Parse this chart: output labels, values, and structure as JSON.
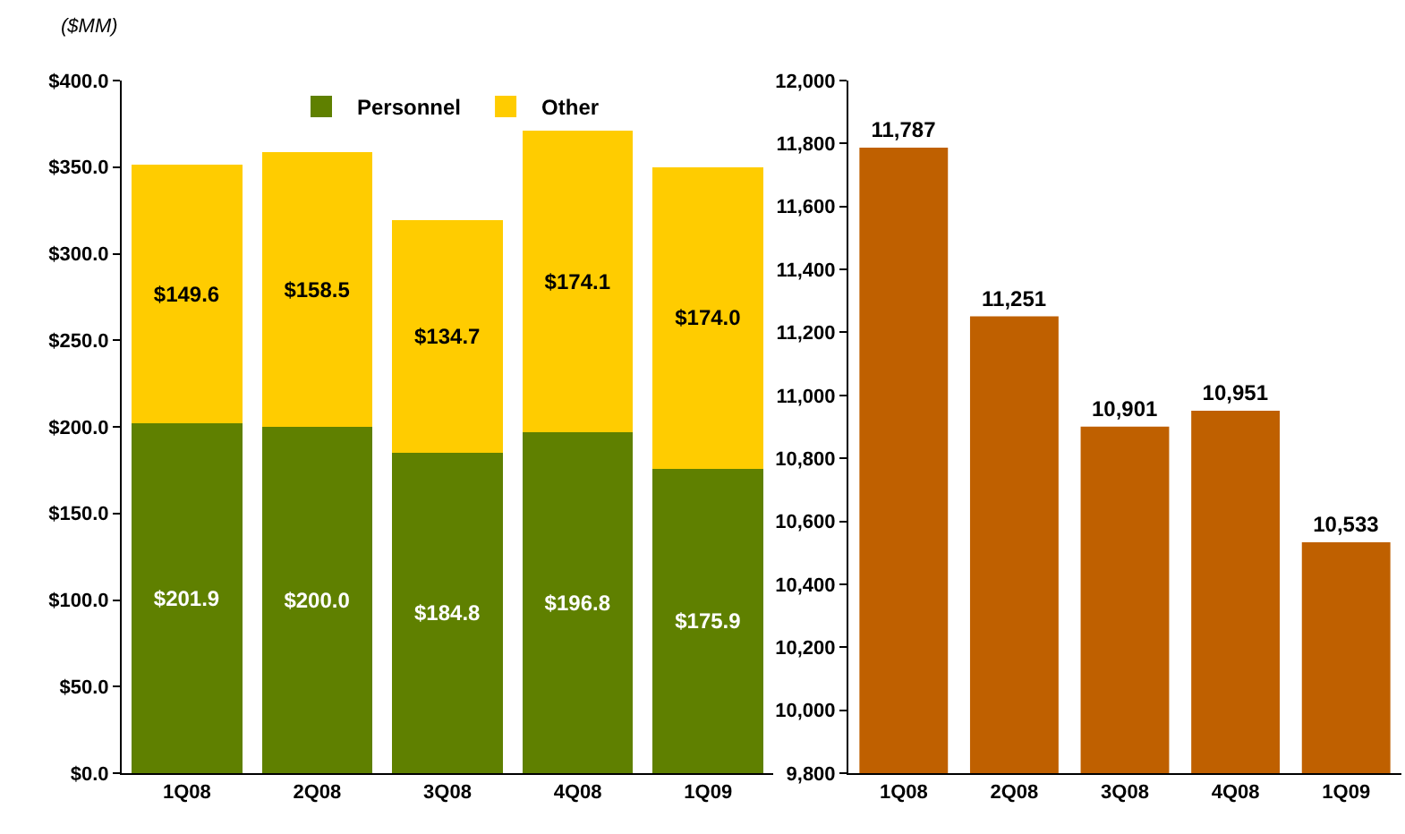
{
  "chart_data": [
    {
      "type": "bar",
      "ylabel": "($MM)",
      "categories": [
        "1Q08",
        "2Q08",
        "3Q08",
        "4Q08",
        "1Q09"
      ],
      "stacked": true,
      "legend": "top",
      "series": [
        {
          "name": "Personnel",
          "color": "#5f8000",
          "values": [
            201.9,
            200.0,
            184.8,
            196.8,
            175.9
          ],
          "value_labels": [
            "$201.9",
            "$200.0",
            "$184.8",
            "$196.8",
            "$175.9"
          ]
        },
        {
          "name": "Other",
          "color": "#ffcc00",
          "values": [
            149.6,
            158.5,
            134.7,
            174.1,
            174.0
          ],
          "value_labels": [
            "$149.6",
            "$158.5",
            "$134.7",
            "$174.1",
            "$174.0"
          ]
        }
      ],
      "ylim": [
        0,
        400
      ],
      "yticks": [
        {
          "value": 0,
          "label": "$0.0"
        },
        {
          "value": 50,
          "label": "$50.0"
        },
        {
          "value": 100,
          "label": "$100.0"
        },
        {
          "value": 150,
          "label": "$150.0"
        },
        {
          "value": 200,
          "label": "$200.0"
        },
        {
          "value": 250,
          "label": "$250.0"
        },
        {
          "value": 300,
          "label": "$300.0"
        },
        {
          "value": 350,
          "label": "$350.0"
        },
        {
          "value": 400,
          "label": "$400.0"
        }
      ]
    },
    {
      "type": "bar",
      "categories": [
        "1Q08",
        "2Q08",
        "3Q08",
        "4Q08",
        "1Q09"
      ],
      "color": "#bf6000",
      "values": [
        11787,
        11251,
        10901,
        10951,
        10533
      ],
      "value_labels": [
        "11,787",
        "11,251",
        "10,901",
        "10,951",
        "10,533"
      ],
      "ylim": [
        9800,
        12000
      ],
      "yticks": [
        {
          "value": 9800,
          "label": "9,800"
        },
        {
          "value": 10000,
          "label": "10,000"
        },
        {
          "value": 10200,
          "label": "10,200"
        },
        {
          "value": 10400,
          "label": "10,400"
        },
        {
          "value": 10600,
          "label": "10,600"
        },
        {
          "value": 10800,
          "label": "10,800"
        },
        {
          "value": 11000,
          "label": "11,000"
        },
        {
          "value": 11200,
          "label": "11,200"
        },
        {
          "value": 11400,
          "label": "11,400"
        },
        {
          "value": 11600,
          "label": "11,600"
        },
        {
          "value": 11800,
          "label": "11,800"
        },
        {
          "value": 12000,
          "label": "12,000"
        }
      ]
    }
  ]
}
